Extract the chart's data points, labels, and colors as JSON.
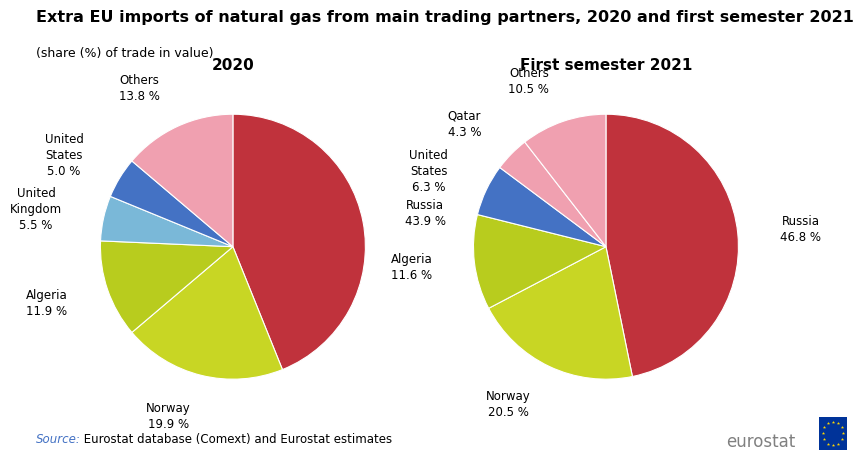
{
  "title": "Extra EU imports of natural gas from main trading partners, 2020 and first semester 2021",
  "subtitle": "(share (%) of trade in value)",
  "source_italic": "Source: ",
  "source_regular": " Eurostat database (Comext) and Eurostat estimates",
  "chart1_title": "2020",
  "chart1_values": [
    43.9,
    19.9,
    11.9,
    5.5,
    5.0,
    13.8
  ],
  "chart1_colors": [
    "#c0323c",
    "#c8d624",
    "#b8cc1e",
    "#7ab8d8",
    "#4472c4",
    "#f0a0b0"
  ],
  "chart1_labels": [
    "Russia\n43.9 %",
    "Norway\n19.9 %",
    "Algeria\n11.9 %",
    "United\nKingdom\n5.5 %",
    "United\nStates\n5.0 %",
    "Others\n13.8 %"
  ],
  "chart2_title": "First semester 2021",
  "chart2_values": [
    46.8,
    20.5,
    11.6,
    6.3,
    4.3,
    10.5
  ],
  "chart2_colors": [
    "#c0323c",
    "#c8d624",
    "#b8cc1e",
    "#4472c4",
    "#f0a0b0",
    "#f0a0b0"
  ],
  "chart2_labels": [
    "Russia\n46.8 %",
    "Norway\n20.5 %",
    "Algeria\n11.6 %",
    "United\nStates\n6.3 %",
    "Qatar\n4.3 %",
    "Others\n10.5 %"
  ],
  "background_color": "#ffffff",
  "title_fontsize": 11.5,
  "subtitle_fontsize": 9,
  "chart_title_fontsize": 11,
  "label_fontsize": 8.5,
  "source_fontsize": 8.5
}
